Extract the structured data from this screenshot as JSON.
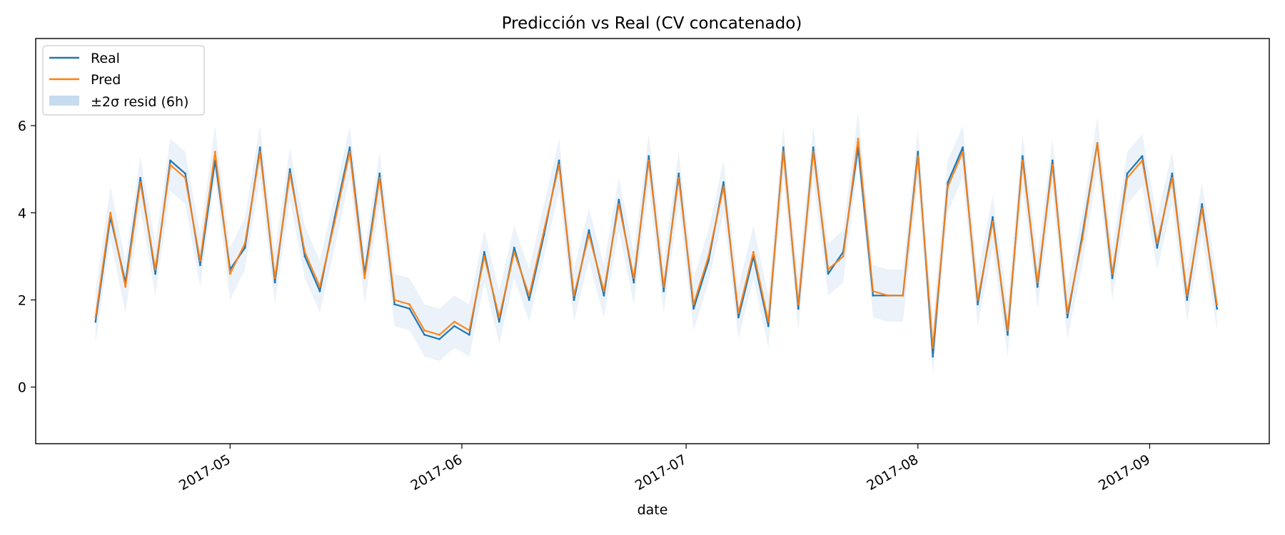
{
  "chart_data": {
    "type": "line",
    "title": "Predicción vs Real (CV concatenado)",
    "xlabel": "date",
    "ylabel": "",
    "xlim": [
      "2017-04-05",
      "2017-09-17"
    ],
    "ylim": [
      -1.3,
      8.0
    ],
    "x_ticks": [
      "2017-05-01",
      "2017-06-01",
      "2017-07-01",
      "2017-08-01",
      "2017-09-01"
    ],
    "x_tick_labels": [
      "2017-05",
      "2017-06",
      "2017-07",
      "2017-08",
      "2017-09"
    ],
    "y_ticks": [
      0,
      2,
      4,
      6
    ],
    "y_tick_labels": [
      "0",
      "2",
      "4",
      "6"
    ],
    "grid": false,
    "legend_position": "top-left",
    "legend": [
      "Real",
      "Pred",
      "±2σ resid (6h)"
    ],
    "colors": {
      "Real": "#1f77b4",
      "Pred": "#ff7f0e",
      "band": "#c6dbef"
    },
    "series": [
      {
        "name": "Real",
        "x": [
          "2017-04-13",
          "2017-04-15",
          "2017-04-17",
          "2017-04-19",
          "2017-04-21",
          "2017-04-23",
          "2017-04-25",
          "2017-04-27",
          "2017-04-29",
          "2017-05-01",
          "2017-05-03",
          "2017-05-05",
          "2017-05-07",
          "2017-05-09",
          "2017-05-11",
          "2017-05-13",
          "2017-05-15",
          "2017-05-17",
          "2017-05-19",
          "2017-05-21",
          "2017-05-23",
          "2017-05-25",
          "2017-05-27",
          "2017-05-29",
          "2017-05-31",
          "2017-06-02",
          "2017-06-04",
          "2017-06-06",
          "2017-06-08",
          "2017-06-10",
          "2017-06-12",
          "2017-06-14",
          "2017-06-16",
          "2017-06-18",
          "2017-06-20",
          "2017-06-22",
          "2017-06-24",
          "2017-06-26",
          "2017-06-28",
          "2017-06-30",
          "2017-07-02",
          "2017-07-04",
          "2017-07-06",
          "2017-07-08",
          "2017-07-10",
          "2017-07-12",
          "2017-07-14",
          "2017-07-16",
          "2017-07-18",
          "2017-07-20",
          "2017-07-22",
          "2017-07-24",
          "2017-07-26",
          "2017-07-28",
          "2017-07-30",
          "2017-08-01",
          "2017-08-03",
          "2017-08-05",
          "2017-08-07",
          "2017-08-09",
          "2017-08-11",
          "2017-08-13",
          "2017-08-15",
          "2017-08-17",
          "2017-08-19",
          "2017-08-21",
          "2017-08-23",
          "2017-08-25",
          "2017-08-27",
          "2017-08-29",
          "2017-08-31",
          "2017-09-02",
          "2017-09-04",
          "2017-09-06",
          "2017-09-08",
          "2017-09-10"
        ],
        "values": [
          1.5,
          3.9,
          2.4,
          4.8,
          2.6,
          5.2,
          4.9,
          2.8,
          5.2,
          2.7,
          3.2,
          5.5,
          2.4,
          5.0,
          3.0,
          2.2,
          3.9,
          5.5,
          2.6,
          4.9,
          1.9,
          1.8,
          1.2,
          1.1,
          1.4,
          1.2,
          3.1,
          1.5,
          3.2,
          2.0,
          3.5,
          5.2,
          2.0,
          3.6,
          2.1,
          4.3,
          2.4,
          5.3,
          2.2,
          4.9,
          1.8,
          2.9,
          4.7,
          1.6,
          3.0,
          1.4,
          5.5,
          1.8,
          5.5,
          2.6,
          3.1,
          5.5,
          2.1,
          2.1,
          2.1,
          5.4,
          0.7,
          4.7,
          5.5,
          1.9,
          3.9,
          1.2,
          5.3,
          2.3,
          5.2,
          1.6,
          3.5,
          5.6,
          2.5,
          4.9,
          5.3,
          3.2,
          4.9,
          2.0,
          4.2,
          1.8
        ]
      },
      {
        "name": "Pred",
        "x": [
          "2017-04-13",
          "2017-04-15",
          "2017-04-17",
          "2017-04-19",
          "2017-04-21",
          "2017-04-23",
          "2017-04-25",
          "2017-04-27",
          "2017-04-29",
          "2017-05-01",
          "2017-05-03",
          "2017-05-05",
          "2017-05-07",
          "2017-05-09",
          "2017-05-11",
          "2017-05-13",
          "2017-05-15",
          "2017-05-17",
          "2017-05-19",
          "2017-05-21",
          "2017-05-23",
          "2017-05-25",
          "2017-05-27",
          "2017-05-29",
          "2017-05-31",
          "2017-06-02",
          "2017-06-04",
          "2017-06-06",
          "2017-06-08",
          "2017-06-10",
          "2017-06-12",
          "2017-06-14",
          "2017-06-16",
          "2017-06-18",
          "2017-06-20",
          "2017-06-22",
          "2017-06-24",
          "2017-06-26",
          "2017-06-28",
          "2017-06-30",
          "2017-07-02",
          "2017-07-04",
          "2017-07-06",
          "2017-07-08",
          "2017-07-10",
          "2017-07-12",
          "2017-07-14",
          "2017-07-16",
          "2017-07-18",
          "2017-07-20",
          "2017-07-22",
          "2017-07-24",
          "2017-07-26",
          "2017-07-28",
          "2017-07-30",
          "2017-08-01",
          "2017-08-03",
          "2017-08-05",
          "2017-08-07",
          "2017-08-09",
          "2017-08-11",
          "2017-08-13",
          "2017-08-15",
          "2017-08-17",
          "2017-08-19",
          "2017-08-21",
          "2017-08-23",
          "2017-08-25",
          "2017-08-27",
          "2017-08-29",
          "2017-08-31",
          "2017-09-02",
          "2017-09-04",
          "2017-09-06",
          "2017-09-08",
          "2017-09-10"
        ],
        "values": [
          1.6,
          4.0,
          2.3,
          4.7,
          2.7,
          5.1,
          4.8,
          2.9,
          5.4,
          2.6,
          3.3,
          5.4,
          2.5,
          4.9,
          3.1,
          2.3,
          3.8,
          5.4,
          2.5,
          4.8,
          2.0,
          1.9,
          1.3,
          1.2,
          1.5,
          1.3,
          3.0,
          1.6,
          3.1,
          2.1,
          3.6,
          5.1,
          2.1,
          3.5,
          2.2,
          4.2,
          2.5,
          5.2,
          2.3,
          4.8,
          1.9,
          3.0,
          4.6,
          1.7,
          3.1,
          1.5,
          5.4,
          1.9,
          5.4,
          2.7,
          3.0,
          5.7,
          2.2,
          2.1,
          2.1,
          5.3,
          0.9,
          4.6,
          5.4,
          2.0,
          3.8,
          1.3,
          5.2,
          2.4,
          5.1,
          1.7,
          3.4,
          5.6,
          2.6,
          4.8,
          5.2,
          3.3,
          4.8,
          2.1,
          4.1,
          1.9
        ]
      }
    ]
  }
}
